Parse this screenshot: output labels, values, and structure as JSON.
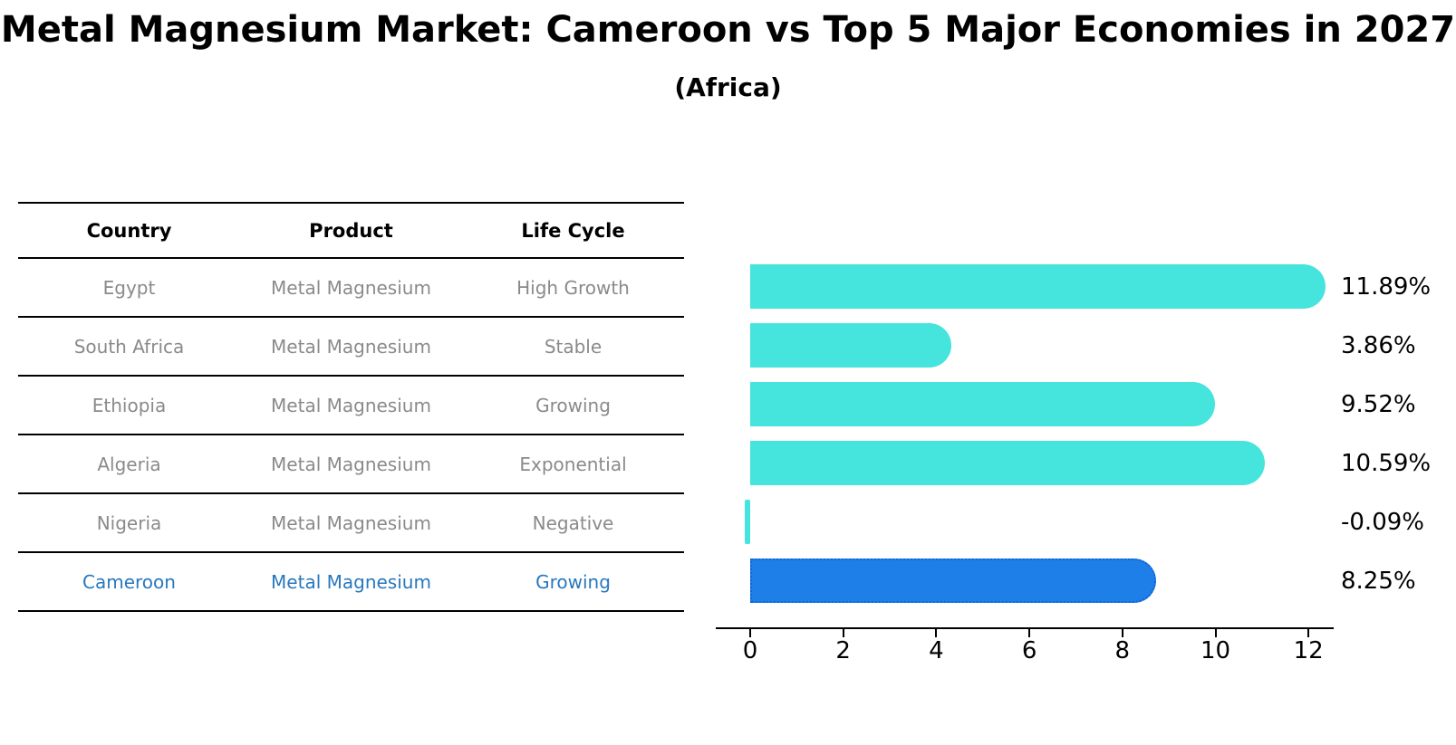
{
  "title": "Metal Magnesium Market: Cameroon vs Top 5 Major Economies in 2027",
  "subtitle": "(Africa)",
  "table": {
    "headers": [
      "Country",
      "Product",
      "Life Cycle"
    ],
    "rows": [
      {
        "country": "Egypt",
        "product": "Metal Magnesium",
        "life_cycle": "High Growth",
        "highlight": false
      },
      {
        "country": "South Africa",
        "product": "Metal Magnesium",
        "life_cycle": "Stable",
        "highlight": false
      },
      {
        "country": "Ethiopia",
        "product": "Metal Magnesium",
        "life_cycle": "Growing",
        "highlight": false
      },
      {
        "country": "Algeria",
        "product": "Metal Magnesium",
        "life_cycle": "Exponential",
        "highlight": false
      },
      {
        "country": "Nigeria",
        "product": "Metal Magnesium",
        "life_cycle": "Negative",
        "highlight": false
      },
      {
        "country": "Cameroon",
        "product": "Metal Magnesium",
        "life_cycle": "Growing",
        "highlight": true
      }
    ]
  },
  "chart_data": {
    "type": "bar",
    "orientation": "horizontal",
    "title": "Metal Magnesium Market: Cameroon vs Top 5 Major Economies in 2027",
    "subtitle": "(Africa)",
    "categories": [
      "Egypt",
      "South Africa",
      "Ethiopia",
      "Algeria",
      "Nigeria",
      "Cameroon"
    ],
    "values": [
      11.89,
      3.86,
      9.52,
      10.59,
      -0.09,
      8.25
    ],
    "value_labels": [
      "11.89%",
      "3.86%",
      "9.52%",
      "10.59%",
      "-0.09%",
      "8.25%"
    ],
    "x_ticks": [
      "0",
      "2",
      "4",
      "6",
      "8",
      "10",
      "12"
    ],
    "xlim": [
      -0.75,
      12.55
    ],
    "grid": false,
    "legend": null,
    "bar_color": "#45e4dd",
    "highlight_index": 5,
    "highlight_bar_color": "#1e7fe8",
    "highlight_border_color": "#0e65d6",
    "highlight_border_style": "dotted"
  },
  "colors": {
    "title_text": "#000000",
    "table_line": "#000000",
    "muted_row_text": "#8a8a8a",
    "highlight_text": "#2878be",
    "axis_text": "#000000"
  }
}
